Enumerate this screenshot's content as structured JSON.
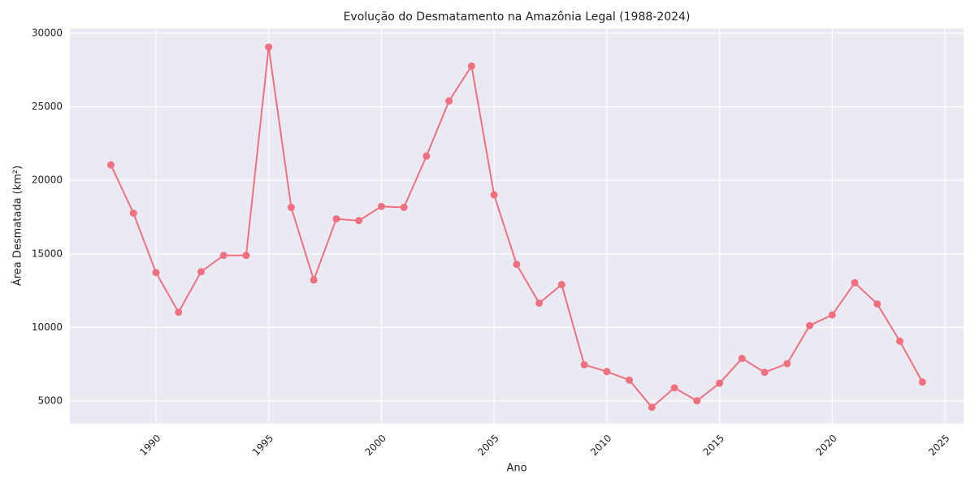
{
  "chart_data": {
    "type": "line",
    "title": "Evolução do Desmatamento na Amazônia Legal (1988-2024)",
    "x_label": "Ano",
    "y_label": "Área Desmatada (km²)",
    "x": [
      1988,
      1989,
      1990,
      1991,
      1992,
      1993,
      1994,
      1995,
      1996,
      1997,
      1998,
      1999,
      2000,
      2001,
      2002,
      2003,
      2004,
      2005,
      2006,
      2007,
      2008,
      2009,
      2010,
      2011,
      2012,
      2013,
      2014,
      2015,
      2016,
      2017,
      2018,
      2019,
      2020,
      2021,
      2022,
      2023,
      2024
    ],
    "series": [
      {
        "color": "#f0707f",
        "values": [
          21050,
          17770,
          13730,
          11030,
          13786,
          14896,
          14896,
          29059,
          18161,
          13227,
          17383,
          17259,
          18226,
          18165,
          21651,
          25396,
          27772,
          19014,
          14286,
          11651,
          12911,
          7464,
          7000,
          6418,
          4571,
          5891,
          5012,
          6207,
          7893,
          6947,
          7536,
          10129,
          10851,
          13038,
          11594,
          9064,
          6288
        ]
      }
    ],
    "xlim": [
      1986.18,
      2025.83
    ],
    "xticks": [
      1990,
      1995,
      2000,
      2005,
      2010,
      2015,
      2020,
      2025
    ],
    "ylim": [
      3455,
      30331
    ],
    "yticks": [
      5000,
      10000,
      15000,
      20000,
      25000,
      30000
    ],
    "grid": true
  }
}
